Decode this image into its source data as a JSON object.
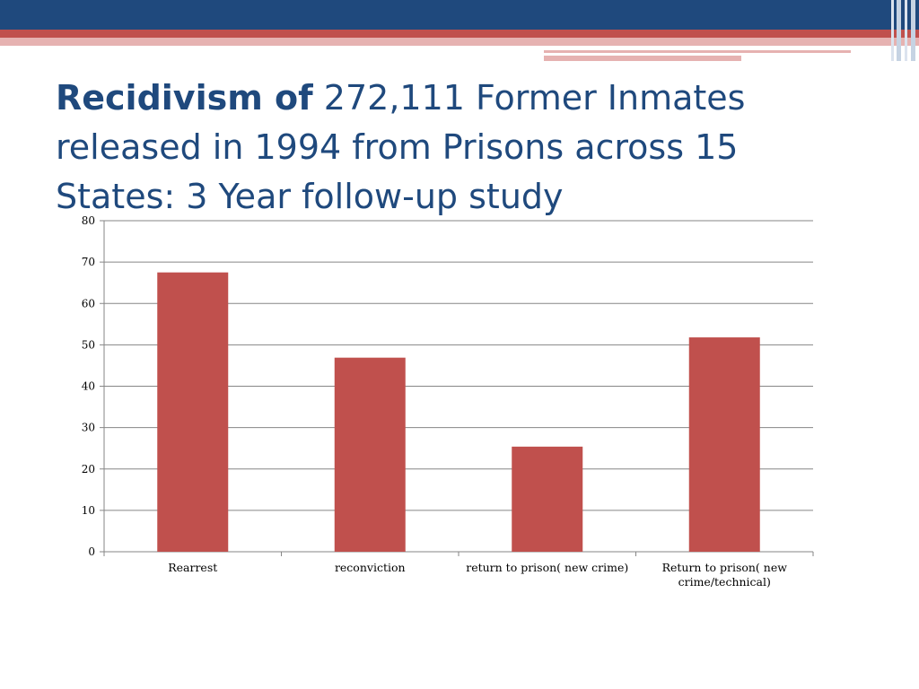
{
  "slide": {
    "title_bold": "Recidivism of",
    "title_rest": " 272,111 Former Inmates released in 1994 from Prisons across 15 States: 3 Year follow-up study"
  },
  "colors": {
    "header_blue": "#1f497d",
    "header_red": "#c0504d",
    "header_pink": "#e6b2b1",
    "title_text": "#1f497d",
    "bar": "#c0504d",
    "grid": "#868686"
  },
  "chart_data": {
    "type": "bar",
    "categories": [
      [
        "Rearrest"
      ],
      [
        "reconviction"
      ],
      [
        "return to prison( new crime)"
      ],
      [
        "Return to prison( new",
        "crime/technical)"
      ]
    ],
    "values": [
      67.5,
      46.9,
      25.4,
      51.8
    ],
    "ylim": [
      0,
      80
    ],
    "yticks": [
      0,
      10,
      20,
      30,
      40,
      50,
      60,
      70,
      80
    ],
    "grid": true,
    "legend": "none"
  }
}
